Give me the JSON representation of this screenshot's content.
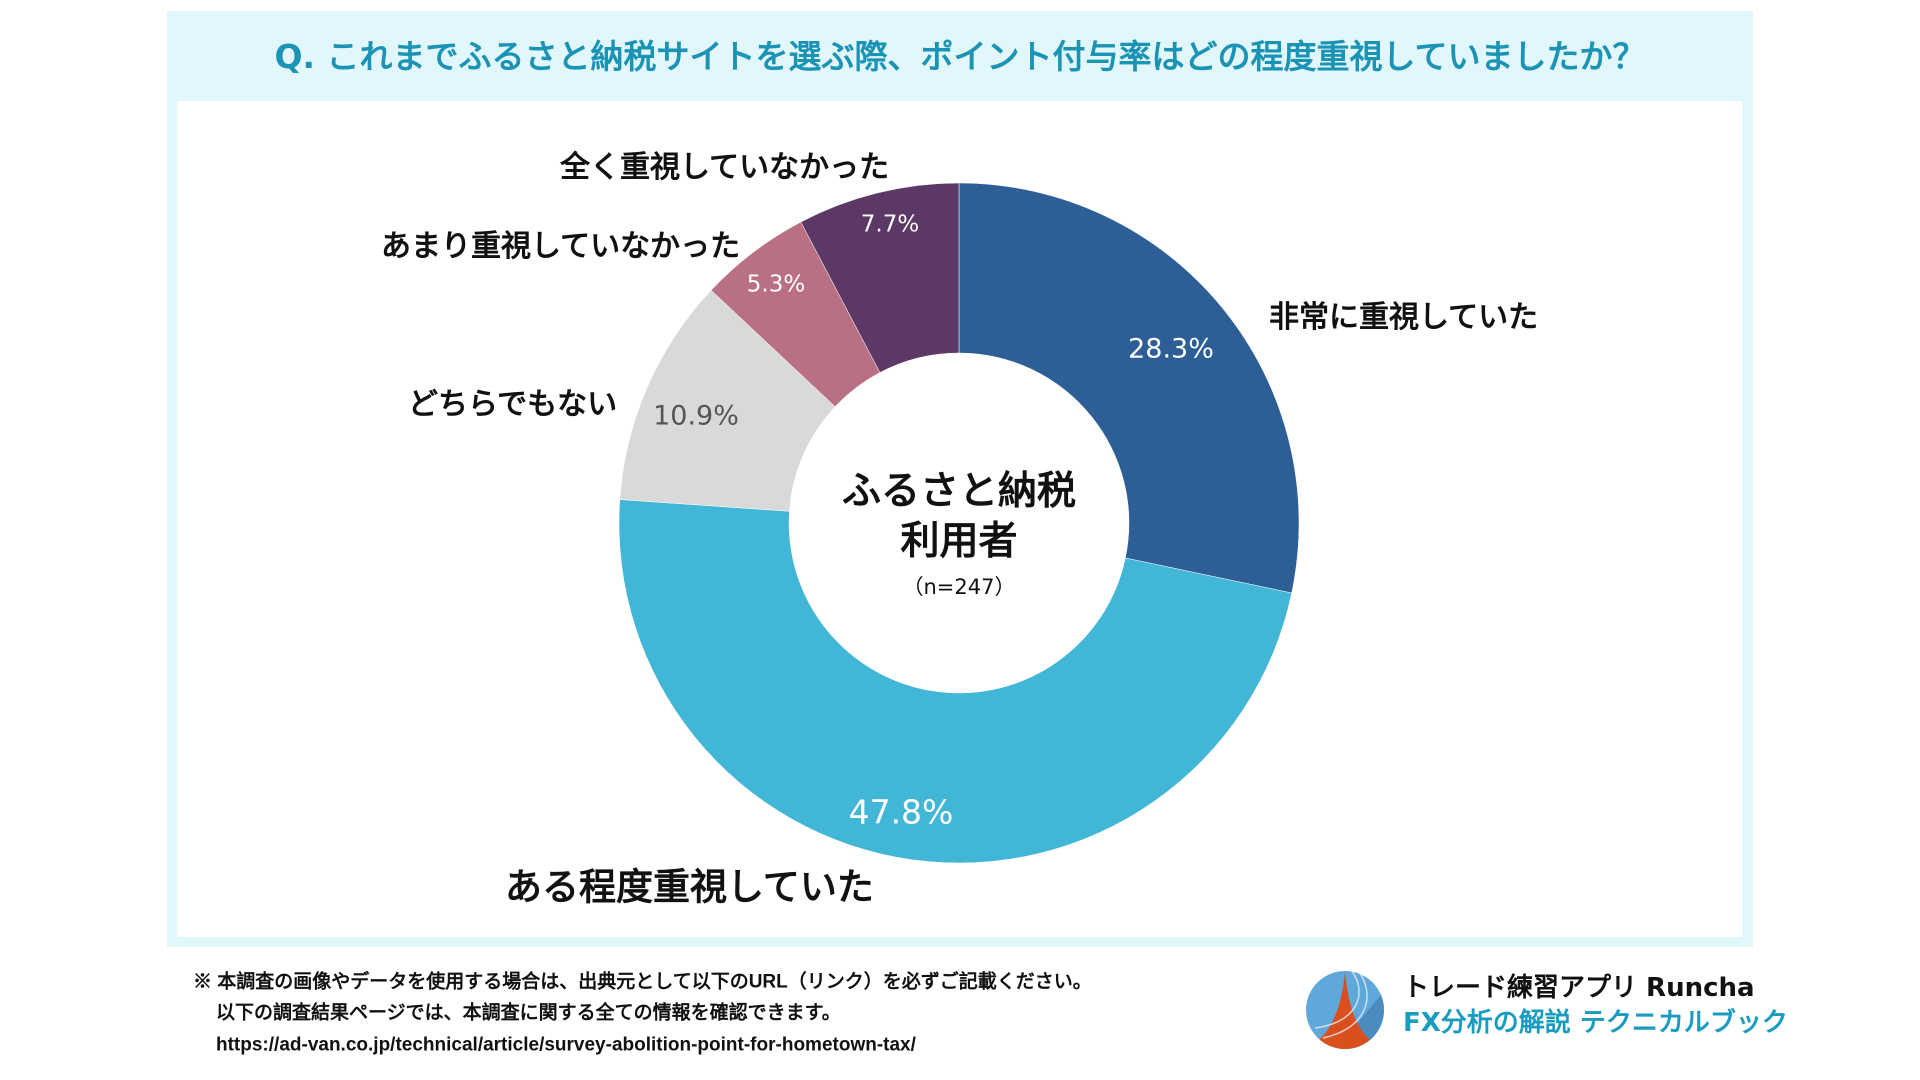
{
  "title": "Q. これまでふるさと納税サイトを選ぶ際、ポイント付与率はどの程度重視していましたか？",
  "chart_data": {
    "type": "pie",
    "variant": "donut",
    "title": "Q. これまでふるさと納税サイトを選ぶ際、ポイント付与率はどの程度重視していましたか？",
    "center_label": [
      "ふるさと納税",
      "利用者"
    ],
    "sample_size": "（n=247）",
    "unit": "%",
    "start": "top",
    "direction": "clockwise",
    "slices": [
      {
        "label": "非常に重視していた",
        "value": 28.3,
        "display": "28.3%",
        "color": "#2E5E96"
      },
      {
        "label": "ある程度重視していた",
        "value": 47.8,
        "display": "47.8%",
        "color": "#42B6D6"
      },
      {
        "label": "どちらでもない",
        "value": 10.9,
        "display": "10.9%",
        "color": "#D9D9D9"
      },
      {
        "label": "あまり重視していなかった",
        "value": 5.3,
        "display": "5.3%",
        "color": "#B97082"
      },
      {
        "label": "全く重視していなかった",
        "value": 7.7,
        "display": "7.7%",
        "color": "#5C3866"
      }
    ]
  },
  "footer": {
    "note_line1": "※ 本調査の画像やデータを使用する場合は、出典元として以下のURL（リンク）を必ずご記載ください。",
    "note_line2": "以下の調査結果ページでは、本調査に関する全ての情報を確認できます。",
    "url": "https://ad-van.co.jp/technical/article/survey-abolition-point-for-hometown-tax/"
  },
  "brand": {
    "line1": "トレード練習アプリ  Runcha",
    "line2": "FX分析の解説  テクニカルブック",
    "accent_color": "#1A9CC0"
  },
  "colors": {
    "title": "#1A93B5",
    "frame_background": "#E1F7FC"
  }
}
